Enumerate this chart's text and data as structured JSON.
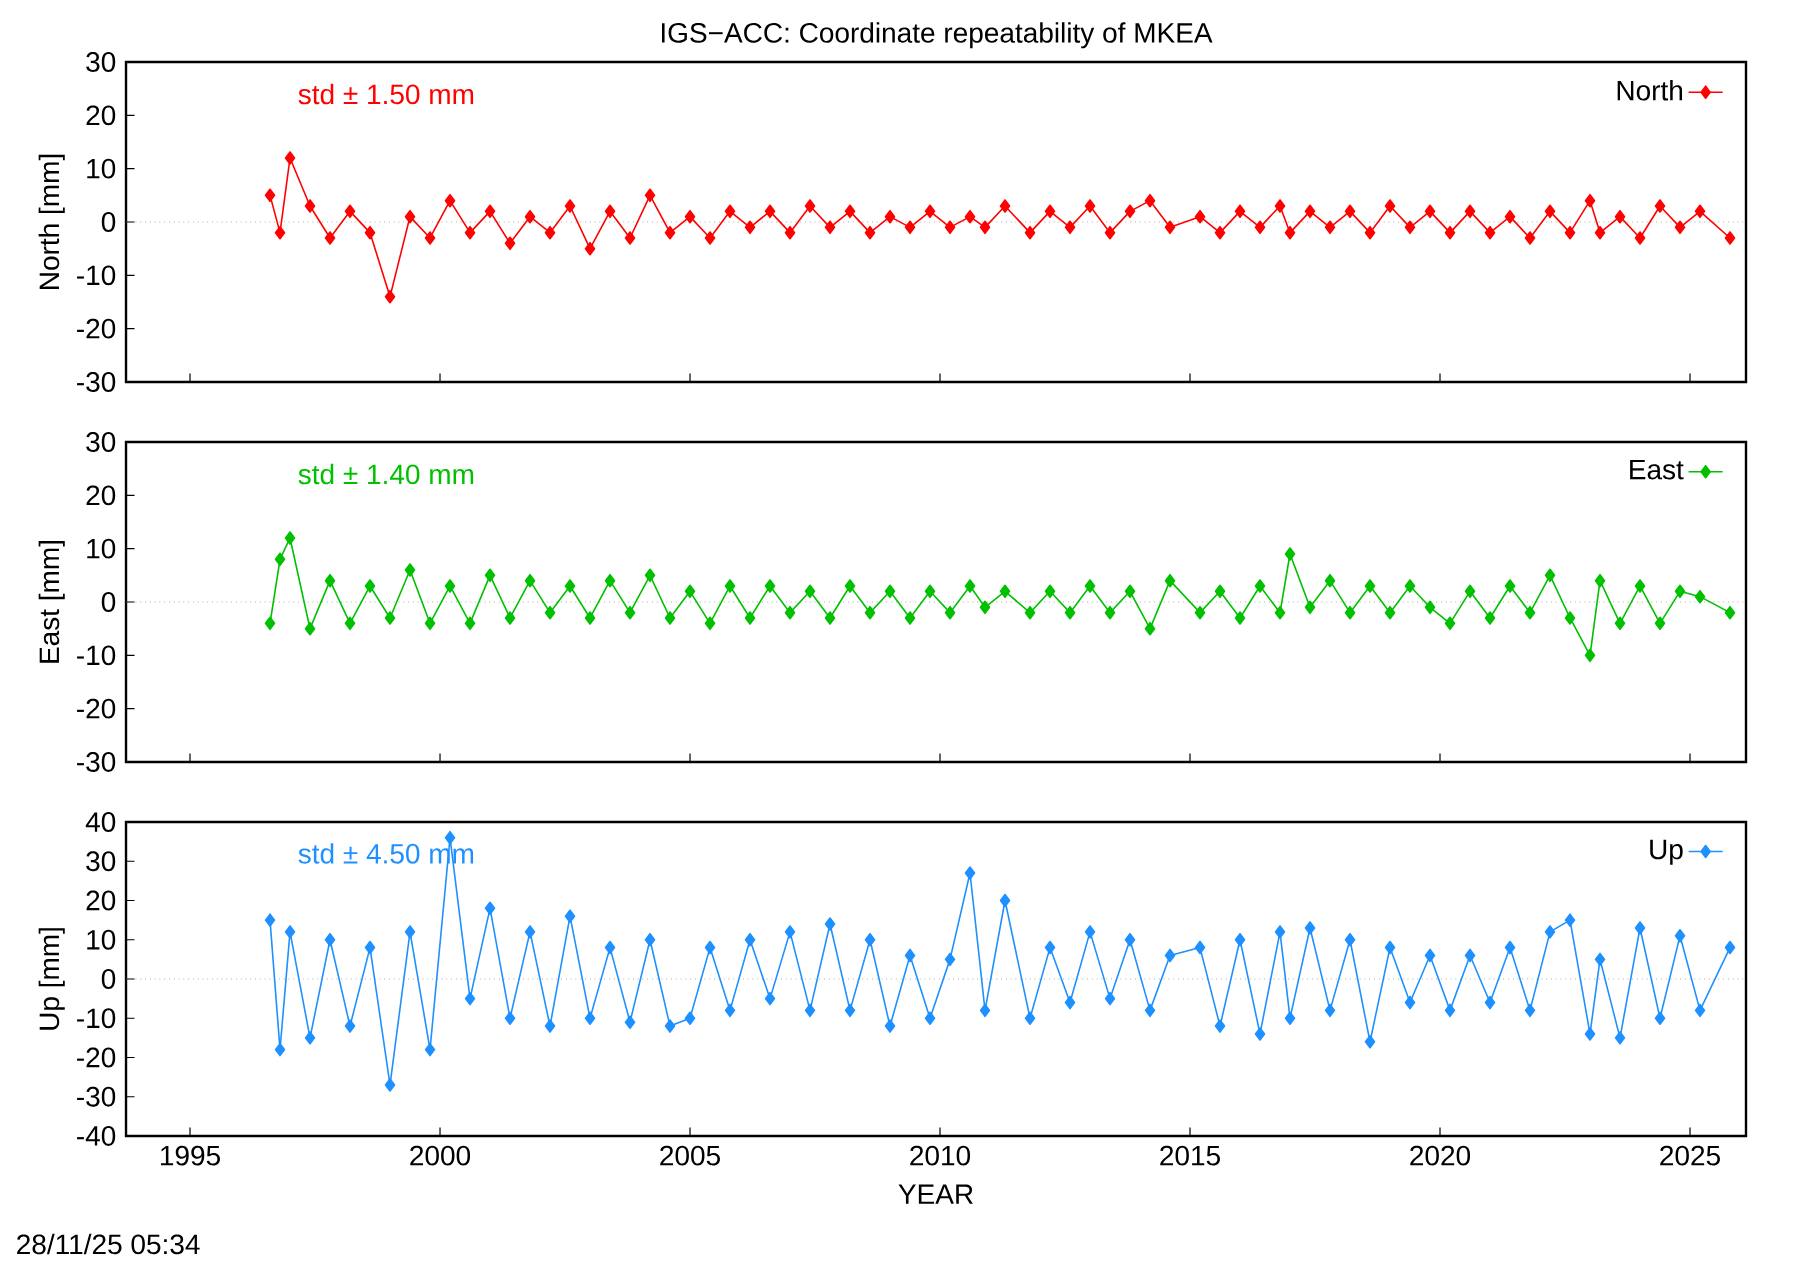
{
  "chart_data": [
    {
      "type": "line",
      "title": "IGS−ACC: Coordinate repeatability of MKEA",
      "ylabel": "North [mm]",
      "x": [
        1996.6,
        1996.8,
        1997.0,
        1997.4,
        1997.8,
        1998.2,
        1998.6,
        1999.0,
        1999.4,
        1999.8,
        2000.2,
        2000.6,
        2001.0,
        2001.4,
        2001.8,
        2002.2,
        2002.6,
        2003.0,
        2003.4,
        2003.8,
        2004.2,
        2004.6,
        2005.0,
        2005.4,
        2005.8,
        2006.2,
        2006.6,
        2007.0,
        2007.4,
        2007.8,
        2008.2,
        2008.6,
        2009.0,
        2009.4,
        2009.8,
        2010.2,
        2010.6,
        2010.9,
        2011.3,
        2011.8,
        2012.2,
        2012.6,
        2013.0,
        2013.4,
        2013.8,
        2014.2,
        2014.6,
        2015.2,
        2015.6,
        2016.0,
        2016.4,
        2016.8,
        2017.0,
        2017.4,
        2017.8,
        2018.2,
        2018.6,
        2019.0,
        2019.4,
        2019.8,
        2020.2,
        2020.6,
        2021.0,
        2021.4,
        2021.8,
        2022.2,
        2022.6,
        2023.0,
        2023.2,
        2023.6,
        2024.0,
        2024.4,
        2024.8,
        2025.2,
        2025.8
      ],
      "series": [
        {
          "name": "North",
          "color": "#ff0000",
          "values": [
            5,
            -2,
            12,
            3,
            -3,
            2,
            -2,
            -14,
            1,
            -3,
            4,
            -2,
            2,
            -4,
            1,
            -2,
            3,
            -5,
            2,
            -3,
            5,
            -2,
            1,
            -3,
            2,
            -1,
            2,
            -2,
            3,
            -1,
            2,
            -2,
            1,
            -1,
            2,
            -1,
            1,
            -1,
            3,
            -2,
            2,
            -1,
            3,
            -2,
            2,
            4,
            -1,
            1,
            -2,
            2,
            -1,
            3,
            -2,
            2,
            -1,
            2,
            -2,
            3,
            -1,
            2,
            -2,
            2,
            -2,
            1,
            -3,
            2,
            -2,
            4,
            -2,
            1,
            -3,
            3,
            -1,
            2,
            -3
          ]
        }
      ],
      "xlim": [
        1993.72,
        2026.12
      ],
      "xticks": [
        1995,
        2000,
        2005,
        2010,
        2015,
        2020,
        2025
      ],
      "ylim": [
        -30,
        30
      ],
      "yticks": [
        -30,
        -20,
        -10,
        0,
        10,
        20,
        30
      ],
      "tick_labels": "y",
      "legend": "top right",
      "marker": "diamond",
      "ref_lines": [
        {
          "axis": "y",
          "value": 0,
          "line_style": "dotted",
          "color": "#808080"
        }
      ],
      "annotations": [
        "std ± 1.50 mm"
      ]
    },
    {
      "type": "line",
      "ylabel": "East [mm]",
      "x": [
        1996.6,
        1996.8,
        1997.0,
        1997.4,
        1997.8,
        1998.2,
        1998.6,
        1999.0,
        1999.4,
        1999.8,
        2000.2,
        2000.6,
        2001.0,
        2001.4,
        2001.8,
        2002.2,
        2002.6,
        2003.0,
        2003.4,
        2003.8,
        2004.2,
        2004.6,
        2005.0,
        2005.4,
        2005.8,
        2006.2,
        2006.6,
        2007.0,
        2007.4,
        2007.8,
        2008.2,
        2008.6,
        2009.0,
        2009.4,
        2009.8,
        2010.2,
        2010.6,
        2010.9,
        2011.3,
        2011.8,
        2012.2,
        2012.6,
        2013.0,
        2013.4,
        2013.8,
        2014.2,
        2014.6,
        2015.2,
        2015.6,
        2016.0,
        2016.4,
        2016.8,
        2017.0,
        2017.4,
        2017.8,
        2018.2,
        2018.6,
        2019.0,
        2019.4,
        2019.8,
        2020.2,
        2020.6,
        2021.0,
        2021.4,
        2021.8,
        2022.2,
        2022.6,
        2023.0,
        2023.2,
        2023.6,
        2024.0,
        2024.4,
        2024.8,
        2025.2,
        2025.8
      ],
      "series": [
        {
          "name": "East",
          "color": "#00c000",
          "values": [
            -4,
            8,
            12,
            -5,
            4,
            -4,
            3,
            -3,
            6,
            -4,
            3,
            -4,
            5,
            -3,
            4,
            -2,
            3,
            -3,
            4,
            -2,
            5,
            -3,
            2,
            -4,
            3,
            -3,
            3,
            -2,
            2,
            -3,
            3,
            -2,
            2,
            -3,
            2,
            -2,
            3,
            -1,
            2,
            -2,
            2,
            -2,
            3,
            -2,
            2,
            -5,
            4,
            -2,
            2,
            -3,
            3,
            -2,
            9,
            -1,
            4,
            -2,
            3,
            -2,
            3,
            -1,
            -4,
            2,
            -3,
            3,
            -2,
            5,
            -3,
            -10,
            4,
            -4,
            3,
            -4,
            2,
            1,
            -2
          ]
        }
      ],
      "xlim": [
        1993.72,
        2026.12
      ],
      "xticks": [
        1995,
        2000,
        2005,
        2010,
        2015,
        2020,
        2025
      ],
      "ylim": [
        -30,
        30
      ],
      "yticks": [
        -30,
        -20,
        -10,
        0,
        10,
        20,
        30
      ],
      "tick_labels": "y",
      "legend": "top right",
      "marker": "diamond",
      "ref_lines": [
        {
          "axis": "y",
          "value": 0,
          "line_style": "dotted",
          "color": "#808080"
        }
      ],
      "annotations": [
        "std ± 1.40 mm"
      ]
    },
    {
      "type": "line",
      "ylabel": "Up [mm]",
      "xlabel": "YEAR",
      "x": [
        1996.6,
        1996.8,
        1997.0,
        1997.4,
        1997.8,
        1998.2,
        1998.6,
        1999.0,
        1999.4,
        1999.8,
        2000.2,
        2000.6,
        2001.0,
        2001.4,
        2001.8,
        2002.2,
        2002.6,
        2003.0,
        2003.4,
        2003.8,
        2004.2,
        2004.6,
        2005.0,
        2005.4,
        2005.8,
        2006.2,
        2006.6,
        2007.0,
        2007.4,
        2007.8,
        2008.2,
        2008.6,
        2009.0,
        2009.4,
        2009.8,
        2010.2,
        2010.6,
        2010.9,
        2011.3,
        2011.8,
        2012.2,
        2012.6,
        2013.0,
        2013.4,
        2013.8,
        2014.2,
        2014.6,
        2015.2,
        2015.6,
        2016.0,
        2016.4,
        2016.8,
        2017.0,
        2017.4,
        2017.8,
        2018.2,
        2018.6,
        2019.0,
        2019.4,
        2019.8,
        2020.2,
        2020.6,
        2021.0,
        2021.4,
        2021.8,
        2022.2,
        2022.6,
        2023.0,
        2023.2,
        2023.6,
        2024.0,
        2024.4,
        2024.8,
        2025.2,
        2025.8
      ],
      "series": [
        {
          "name": "Up",
          "color": "#1e90ff",
          "values": [
            15,
            -18,
            12,
            -15,
            10,
            -12,
            8,
            -27,
            12,
            -18,
            36,
            -5,
            18,
            -10,
            12,
            -12,
            16,
            -10,
            8,
            -11,
            10,
            -12,
            -10,
            8,
            -8,
            10,
            -5,
            12,
            -8,
            14,
            -8,
            10,
            -12,
            6,
            -10,
            5,
            27,
            -8,
            20,
            -10,
            8,
            -6,
            12,
            -5,
            10,
            -8,
            6,
            8,
            -12,
            10,
            -14,
            12,
            -10,
            13,
            -8,
            10,
            -16,
            8,
            -6,
            6,
            -8,
            6,
            -6,
            8,
            -8,
            12,
            15,
            -14,
            5,
            -15,
            13,
            -10,
            11,
            -8,
            8
          ]
        }
      ],
      "xlim": [
        1993.72,
        2026.12
      ],
      "xticks": [
        1995,
        2000,
        2005,
        2010,
        2015,
        2020,
        2025
      ],
      "ylim": [
        -40,
        40
      ],
      "yticks": [
        -40,
        -30,
        -20,
        -10,
        0,
        10,
        20,
        30,
        40
      ],
      "legend": "top right",
      "marker": "diamond",
      "ref_lines": [
        {
          "axis": "y",
          "value": 0,
          "line_style": "dotted",
          "color": "#808080"
        }
      ],
      "annotations": [
        "std ± 4.50 mm",
        "28/11/25 05:34"
      ]
    }
  ]
}
